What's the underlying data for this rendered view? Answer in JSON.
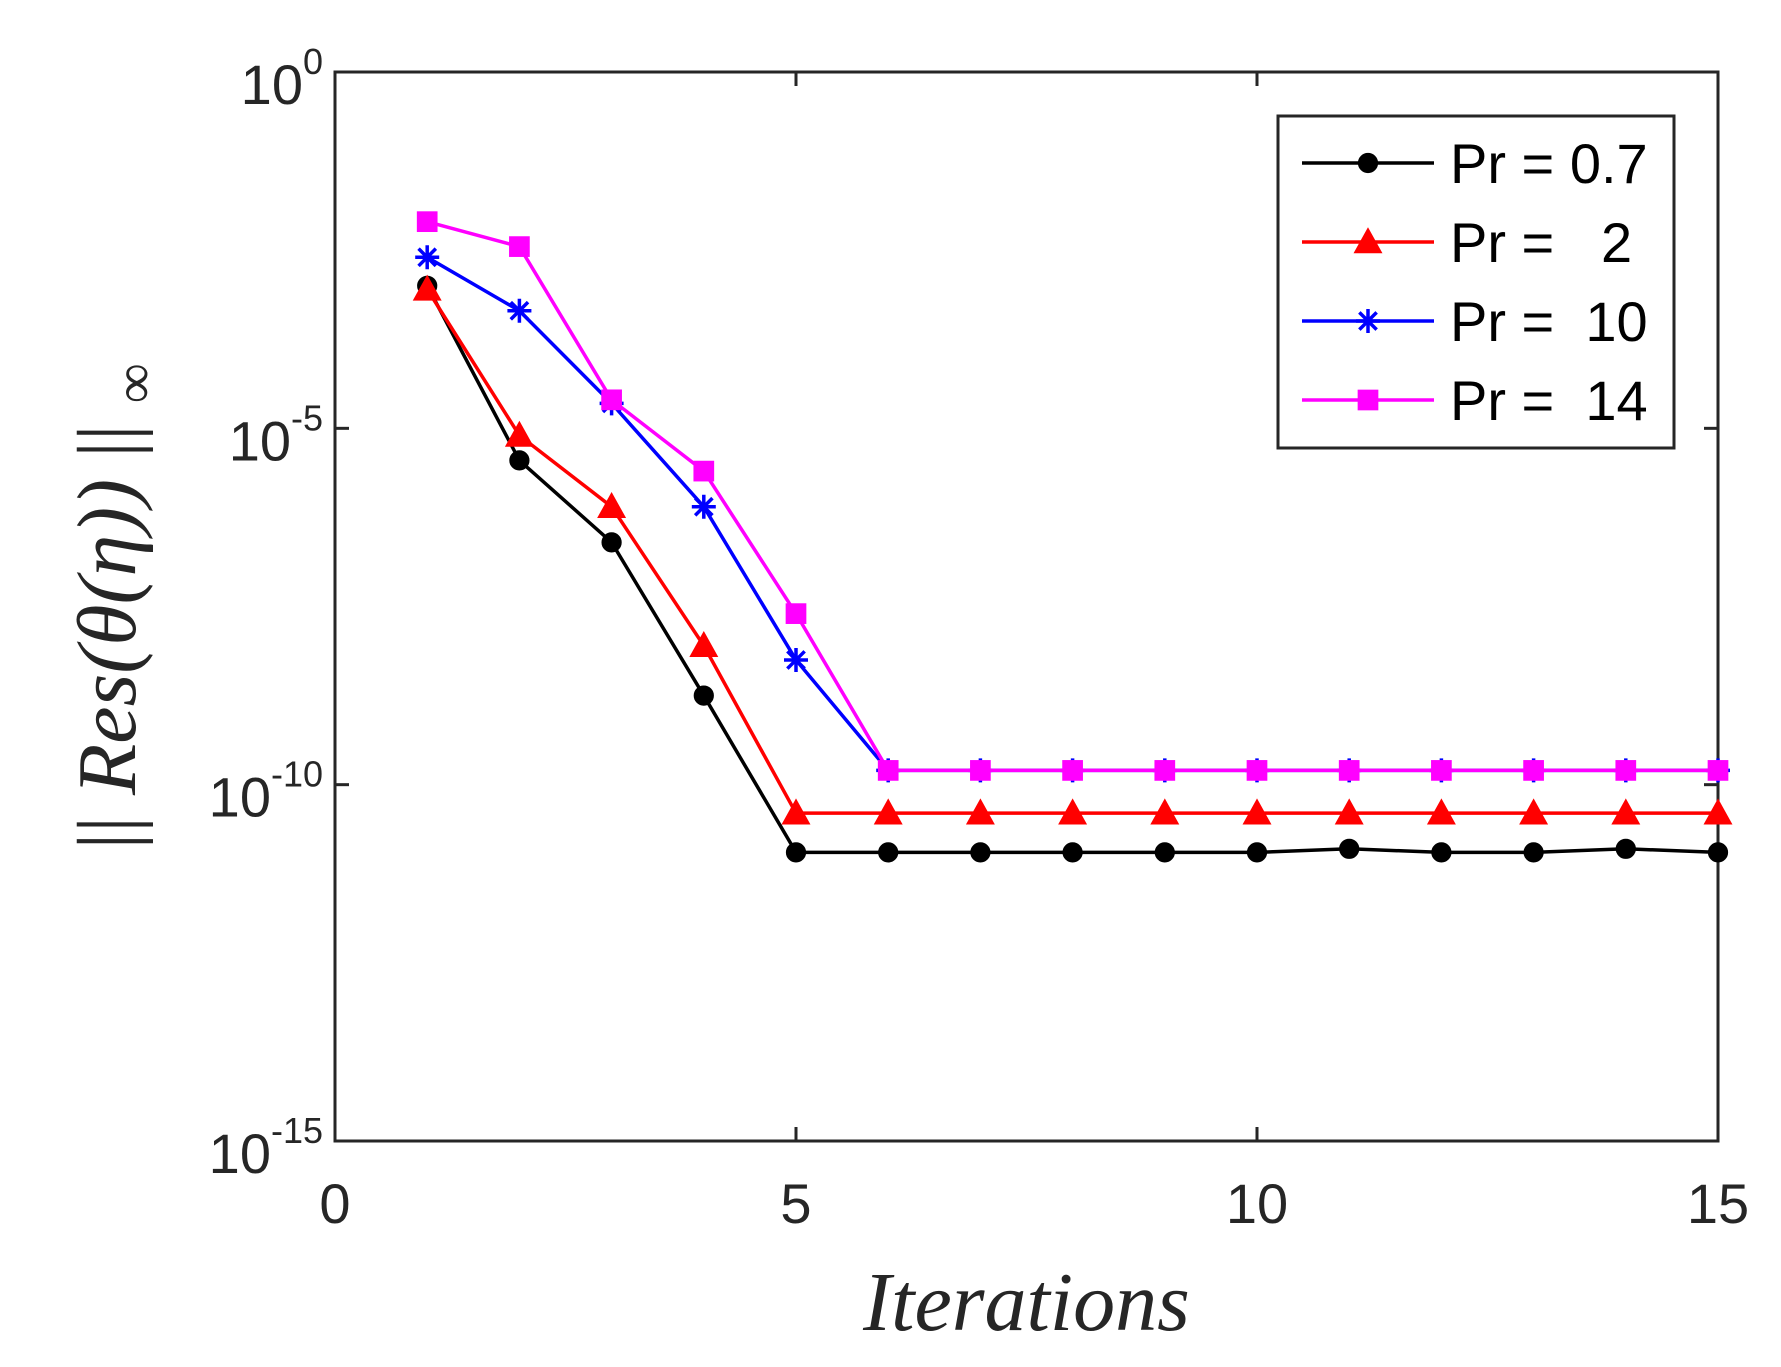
{
  "chart_data": {
    "type": "line",
    "title": "",
    "xlabel": "Iterations",
    "ylabel": "||Res(θ(η))||∞",
    "ylabel_parts": {
      "bars_left": "||",
      "main": "Res(θ(η))",
      "bars_right": "||",
      "sub": "∞"
    },
    "xlim": [
      0,
      15
    ],
    "ylim_log10": [
      -15,
      0
    ],
    "yscale": "log",
    "x_ticks": [
      {
        "value": 0,
        "label": "0"
      },
      {
        "value": 5,
        "label": "5"
      },
      {
        "value": 10,
        "label": "10"
      },
      {
        "value": 15,
        "label": "15"
      }
    ],
    "y_ticks": [
      {
        "exp": 0,
        "base": "10",
        "sup": "0"
      },
      {
        "exp": -5,
        "base": "10",
        "sup": "-5"
      },
      {
        "exp": -10,
        "base": "10",
        "sup": "-10"
      },
      {
        "exp": -15,
        "base": "10",
        "sup": "-15"
      }
    ],
    "grid": false,
    "legend_position": "top-right",
    "x": [
      1,
      2,
      3,
      4,
      5,
      6,
      7,
      8,
      9,
      10,
      11,
      12,
      13,
      14,
      15
    ],
    "series": [
      {
        "name": "Pr = 0.7",
        "color": "#000000",
        "marker": "circle",
        "log10_values": [
          -3.0,
          -5.45,
          -6.6,
          -8.75,
          -10.95,
          -10.95,
          -10.95,
          -10.95,
          -10.95,
          -10.95,
          -10.9,
          -10.95,
          -10.95,
          -10.9,
          -10.95
        ]
      },
      {
        "name": "Pr =   2",
        "color": "#ff0000",
        "marker": "triangle",
        "log10_values": [
          -3.05,
          -5.1,
          -6.1,
          -8.05,
          -10.4,
          -10.4,
          -10.4,
          -10.4,
          -10.4,
          -10.4,
          -10.4,
          -10.4,
          -10.4,
          -10.4,
          -10.4
        ]
      },
      {
        "name": "Pr =  10",
        "color": "#0000ff",
        "marker": "asterisk",
        "log10_values": [
          -2.6,
          -3.35,
          -4.65,
          -6.1,
          -8.25,
          -9.8,
          -9.8,
          -9.8,
          -9.8,
          -9.8,
          -9.8,
          -9.8,
          -9.8,
          -9.8,
          -9.8
        ]
      },
      {
        "name": "Pr =  14",
        "color": "#ff00ff",
        "marker": "square",
        "log10_values": [
          -2.1,
          -2.45,
          -4.6,
          -5.6,
          -7.6,
          -9.8,
          -9.8,
          -9.8,
          -9.8,
          -9.8,
          -9.8,
          -9.8,
          -9.8,
          -9.8,
          -9.8
        ]
      }
    ]
  }
}
